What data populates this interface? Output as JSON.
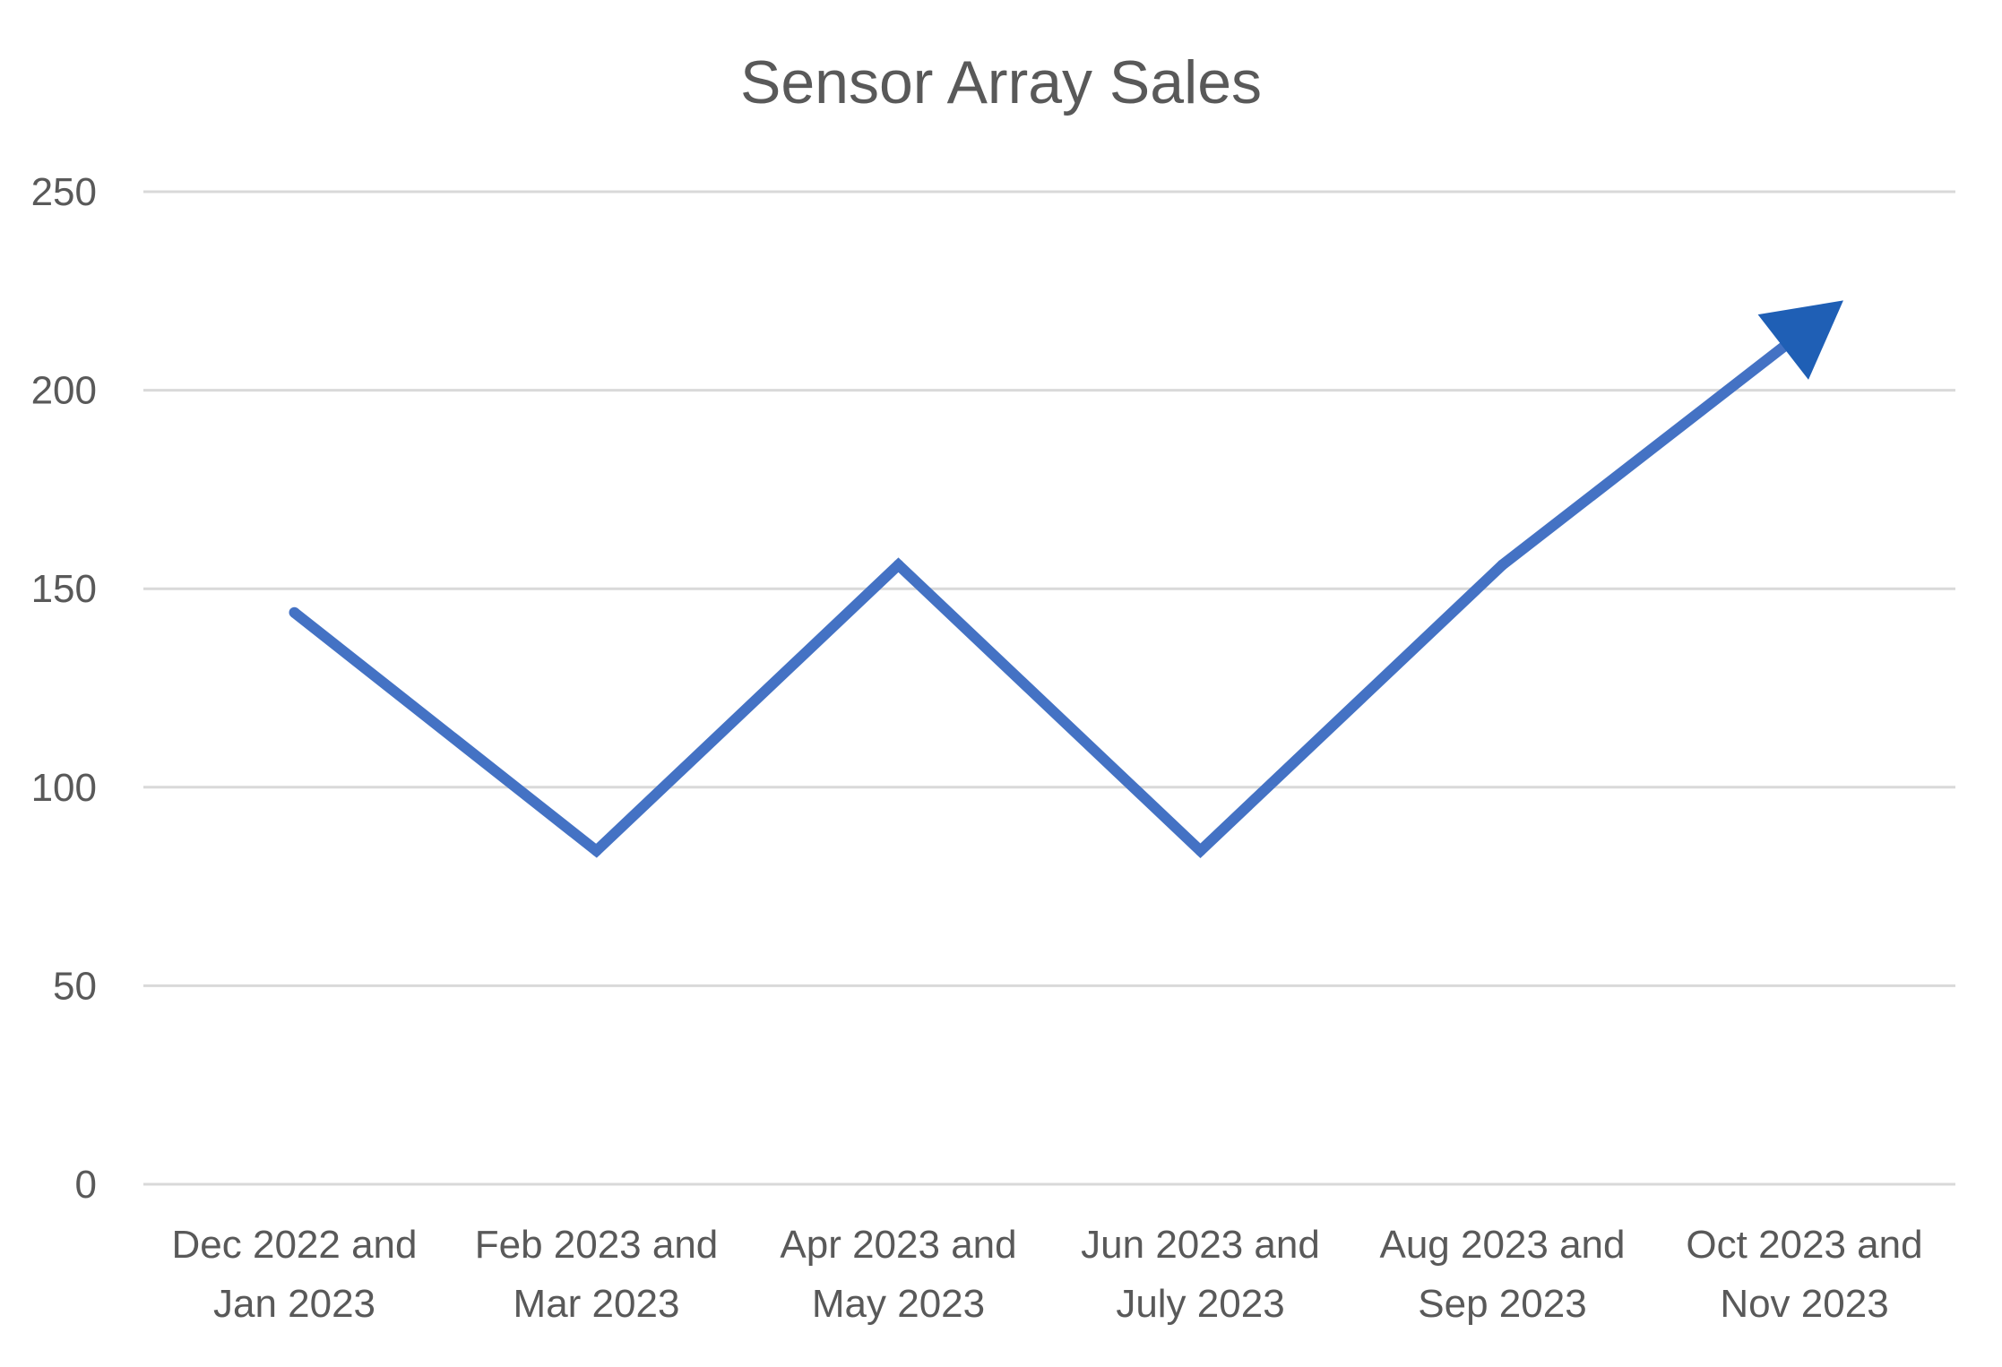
{
  "chart_data": {
    "type": "line",
    "title": "Sensor Array Sales",
    "xlabel": "",
    "ylabel": "",
    "categories": [
      [
        "Dec 2022 and",
        "Jan 2023"
      ],
      [
        "Feb 2023 and",
        "Mar 2023"
      ],
      [
        "Apr 2023 and",
        "May 2023"
      ],
      [
        "Jun 2023 and",
        "July 2023"
      ],
      [
        "Aug 2023 and",
        "Sep 2023"
      ],
      [
        "Oct 2023 and",
        "Nov 2023"
      ]
    ],
    "series": [
      {
        "values": [
          144,
          84,
          156,
          84,
          156,
          215
        ],
        "color": "#4472c4"
      }
    ],
    "trend_arrow": {
      "color": "#1f5fb5"
    },
    "ylim": [
      0,
      250
    ],
    "yticks": [
      0,
      50,
      100,
      150,
      200,
      250
    ],
    "grid": true,
    "legend": "none"
  }
}
